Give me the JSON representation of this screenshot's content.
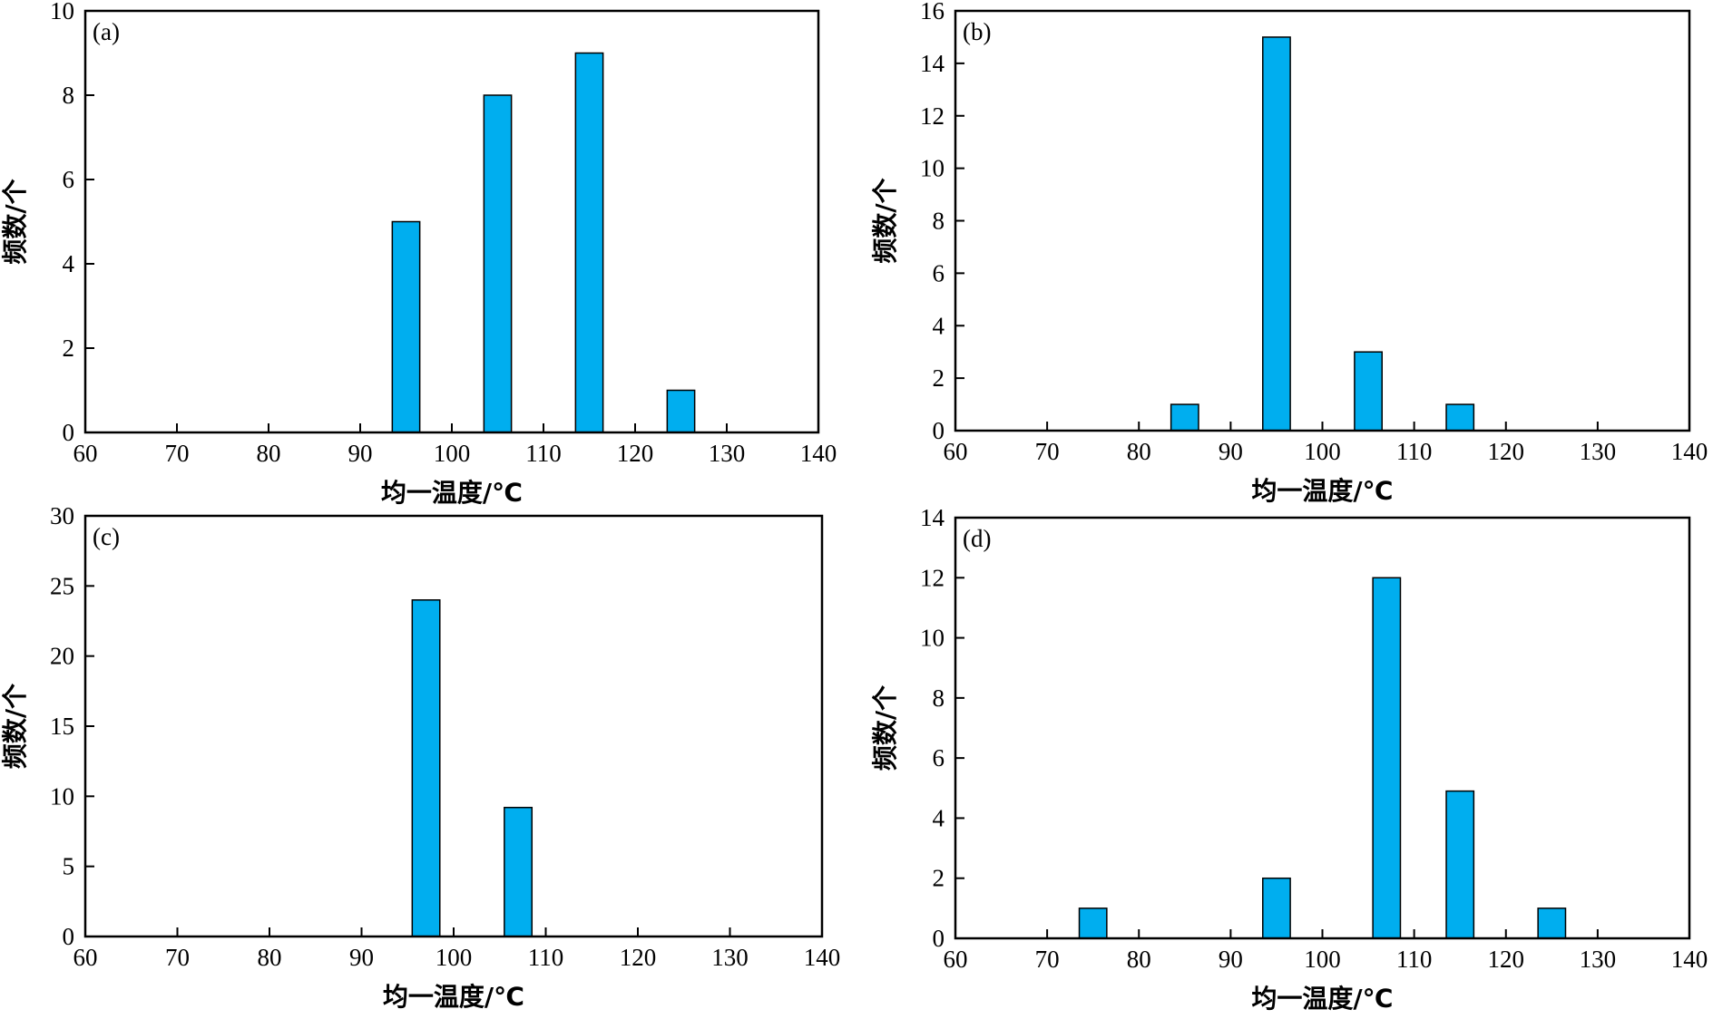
{
  "bar_color": "#00aeef",
  "chart_data": [
    {
      "type": "bar",
      "panel_label": "(a)",
      "xlabel": "均一温度/℃",
      "ylabel": "频数/个",
      "xlim": [
        60,
        140
      ],
      "ylim": [
        0,
        10
      ],
      "xticks": [
        60,
        70,
        80,
        90,
        100,
        110,
        120,
        130,
        140
      ],
      "yticks": [
        0,
        2,
        4,
        6,
        8,
        10
      ],
      "bin_width": 3,
      "x": [
        95,
        105,
        115,
        125
      ],
      "values": [
        5,
        8,
        9,
        1
      ],
      "grid": false
    },
    {
      "type": "bar",
      "panel_label": "(b)",
      "xlabel": "均一温度/℃",
      "ylabel": "频数/个",
      "xlim": [
        60,
        140
      ],
      "ylim": [
        0,
        16
      ],
      "xticks": [
        60,
        70,
        80,
        90,
        100,
        110,
        120,
        130,
        140
      ],
      "yticks": [
        0,
        2,
        4,
        6,
        8,
        10,
        12,
        14,
        16
      ],
      "bin_width": 3,
      "x": [
        85,
        95,
        105,
        115
      ],
      "values": [
        1,
        15,
        3,
        1
      ],
      "grid": false
    },
    {
      "type": "bar",
      "panel_label": "(c)",
      "xlabel": "均一温度/℃",
      "ylabel": "频数/个",
      "xlim": [
        60,
        140
      ],
      "ylim": [
        0,
        30
      ],
      "xticks": [
        60,
        70,
        80,
        90,
        100,
        110,
        120,
        130,
        140
      ],
      "yticks": [
        0,
        5,
        10,
        15,
        20,
        25,
        30
      ],
      "bin_width": 3,
      "x": [
        97,
        107
      ],
      "values": [
        24,
        9.2
      ],
      "grid": false
    },
    {
      "type": "bar",
      "panel_label": "(d)",
      "xlabel": "均一温度/℃",
      "ylabel": "频数/个",
      "xlim": [
        60,
        140
      ],
      "ylim": [
        0,
        14
      ],
      "xticks": [
        60,
        70,
        80,
        90,
        100,
        110,
        120,
        130,
        140
      ],
      "yticks": [
        0,
        2,
        4,
        6,
        8,
        10,
        12,
        14
      ],
      "bin_width": 3,
      "x": [
        75,
        95,
        107,
        115,
        125
      ],
      "values": [
        1,
        2,
        12,
        4.9,
        1
      ],
      "grid": false
    }
  ]
}
